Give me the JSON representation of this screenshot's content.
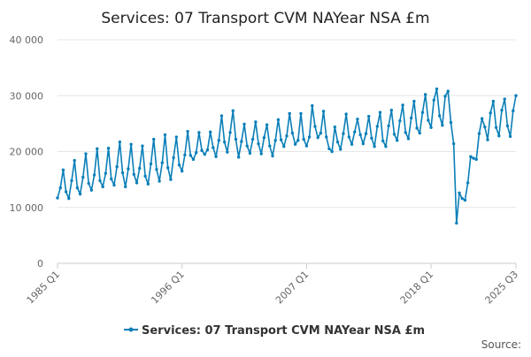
{
  "chart_data": {
    "type": "line",
    "title": "Services: 07 Transport CVM NAYear NSA £m",
    "xlabel": "",
    "ylabel": "",
    "ylim": [
      0,
      40000
    ],
    "yticks": [
      {
        "value": 0,
        "label": "0"
      },
      {
        "value": 10000,
        "label": "10 000"
      },
      {
        "value": 20000,
        "label": "20 000"
      },
      {
        "value": 30000,
        "label": "30 000"
      },
      {
        "value": 40000,
        "label": "40 000"
      }
    ],
    "xticks": [
      {
        "index": 0,
        "label": "1985 Q1"
      },
      {
        "index": 44,
        "label": "1996 Q1"
      },
      {
        "index": 88,
        "label": "2007 Q1"
      },
      {
        "index": 132,
        "label": "2018 Q1"
      },
      {
        "index": 162,
        "label": "2025 Q3"
      }
    ],
    "grid": true,
    "legend_position": "bottom",
    "source_label": "Source:",
    "series": [
      {
        "name": "Services: 07 Transport CVM NAYear NSA £m",
        "color": "#0a7fb8",
        "x_start": "1985 Q1",
        "x_end": "2025 Q3",
        "frequency": "quarterly",
        "values": [
          11700,
          13500,
          16700,
          12800,
          11600,
          14800,
          18400,
          13500,
          12400,
          15400,
          19600,
          14300,
          13100,
          15800,
          20500,
          14800,
          13700,
          16100,
          20600,
          15100,
          14000,
          17300,
          21700,
          16200,
          13700,
          16900,
          21300,
          15900,
          14400,
          17000,
          21000,
          15600,
          14200,
          17800,
          22200,
          16800,
          14700,
          18000,
          23000,
          17100,
          15000,
          18900,
          22600,
          17600,
          16500,
          19400,
          23600,
          19300,
          18600,
          19800,
          23400,
          20200,
          19500,
          20300,
          23500,
          20700,
          19100,
          22000,
          26400,
          21700,
          19900,
          23400,
          27300,
          22200,
          19000,
          21800,
          24900,
          21000,
          19700,
          22200,
          25300,
          21400,
          19600,
          22500,
          24800,
          21000,
          19200,
          22000,
          25700,
          22100,
          20900,
          22800,
          26800,
          23300,
          21300,
          22000,
          26800,
          22200,
          21000,
          22600,
          28200,
          24500,
          22500,
          23300,
          27200,
          22600,
          20500,
          20000,
          24400,
          21700,
          20400,
          23200,
          26700,
          22600,
          21300,
          23500,
          25800,
          23000,
          21400,
          23200,
          26300,
          22400,
          20900,
          24500,
          27000,
          21900,
          20900,
          24600,
          27400,
          23100,
          22000,
          25500,
          28300,
          23400,
          22300,
          26000,
          29000,
          24200,
          23300,
          27000,
          30200,
          25600,
          24300,
          29200,
          31200,
          26400,
          24700,
          29900,
          30800,
          25200,
          21400,
          7200,
          12600,
          11600,
          11300,
          14400,
          19100,
          18800,
          18600,
          23200,
          25900,
          24400,
          22100,
          26900,
          29000,
          24300,
          22800,
          27400,
          29400,
          24600,
          22700,
          27300,
          30000
        ]
      }
    ]
  }
}
